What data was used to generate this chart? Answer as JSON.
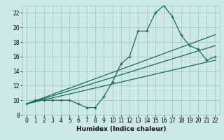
{
  "xlabel": "Humidex (Indice chaleur)",
  "xlim": [
    -0.5,
    22.5
  ],
  "ylim": [
    8,
    23
  ],
  "yticks": [
    8,
    10,
    12,
    14,
    16,
    18,
    20,
    22
  ],
  "xticks": [
    0,
    1,
    2,
    3,
    4,
    5,
    6,
    7,
    8,
    9,
    10,
    11,
    12,
    13,
    14,
    15,
    16,
    17,
    18,
    19,
    20,
    21,
    22
  ],
  "bg_color": "#cce8e8",
  "grid_color": "#aacccc",
  "line_color": "#1a6b5a",
  "main_x": [
    0,
    1,
    2,
    3,
    4,
    5,
    6,
    7,
    8,
    9,
    10,
    11,
    12,
    13,
    14,
    15,
    16,
    17,
    18,
    19,
    20,
    21,
    22
  ],
  "main_y": [
    9.5,
    10.0,
    10.0,
    10.0,
    10.0,
    10.0,
    9.5,
    9.0,
    9.0,
    10.5,
    12.5,
    15.0,
    16.0,
    19.5,
    19.5,
    22.0,
    23.0,
    21.5,
    19.0,
    17.5,
    17.0,
    15.5,
    16.0
  ],
  "line1_x": [
    0,
    22
  ],
  "line1_y": [
    9.5,
    19.0
  ],
  "line2_x": [
    0,
    22
  ],
  "line2_y": [
    9.5,
    17.5
  ],
  "line3_x": [
    0,
    22
  ],
  "line3_y": [
    9.5,
    15.5
  ]
}
